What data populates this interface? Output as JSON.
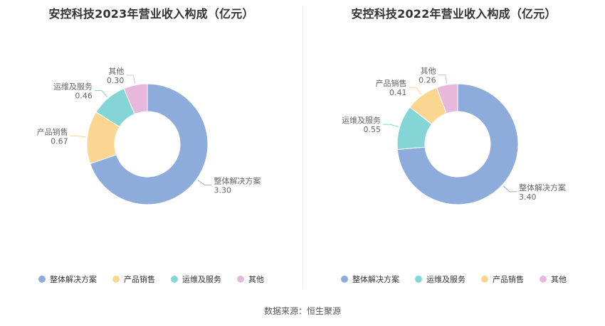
{
  "colors": {
    "整体解决方案": "#8eacdb",
    "产品销售": "#fad691",
    "运维及服务": "#84d6d6",
    "其他": "#e7b8dc"
  },
  "source": "数据来源：恒生聚源",
  "chart_data": [
    {
      "type": "pie",
      "title": "安控科技2023年营业收入构成（亿元）",
      "categories": [
        "整体解决方案",
        "产品销售",
        "运维及服务",
        "其他"
      ],
      "values": [
        3.3,
        0.67,
        0.46,
        0.3
      ],
      "value_labels": [
        "3.30",
        "0.67",
        "0.46",
        "0.30"
      ],
      "legend": [
        "整体解决方案",
        "产品销售",
        "运维及服务",
        "其他"
      ],
      "legend_position": "bottom",
      "donut": true
    },
    {
      "type": "pie",
      "title": "安控科技2022年营业收入构成（亿元）",
      "categories": [
        "整体解决方案",
        "运维及服务",
        "产品销售",
        "其他"
      ],
      "values": [
        3.4,
        0.55,
        0.41,
        0.26
      ],
      "value_labels": [
        "3.40",
        "0.55",
        "0.41",
        "0.26"
      ],
      "legend": [
        "整体解决方案",
        "运维及服务",
        "产品销售",
        "其他"
      ],
      "legend_position": "bottom",
      "donut": true
    }
  ]
}
